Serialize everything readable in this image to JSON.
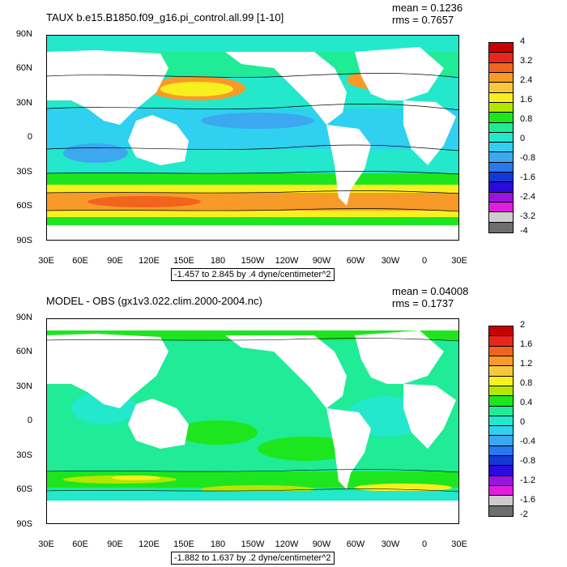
{
  "panels": [
    {
      "title": "TAUX b.e15.B1850.f09_g16.pi_control.all.99 [1-10]",
      "mean": "mean = 0.1236",
      "rms": "rms = 0.7657",
      "range_label": "-1.457 to 2.845 by .4 dyne/centimeter^2",
      "lat_labels": [
        "90N",
        "60N",
        "30N",
        "0",
        "30S",
        "60S",
        "90S"
      ],
      "lon_labels": [
        "30E",
        "60E",
        "90E",
        "120E",
        "150E",
        "180",
        "150W",
        "120W",
        "90W",
        "60W",
        "30W",
        "0",
        "30E"
      ],
      "colorbar": {
        "labels": [
          "4",
          "3.2",
          "2.4",
          "1.6",
          "0.8",
          "0",
          "-0.8",
          "-1.6",
          "-2.4",
          "-3.2",
          "-4"
        ],
        "colors": [
          "#c80000",
          "#e8261e",
          "#f0641e",
          "#f89a28",
          "#f8c83c",
          "#f8f01e",
          "#b4e600",
          "#1ee61e",
          "#20eb96",
          "#23e8cc",
          "#2fd0f0",
          "#3ca8f0",
          "#2878ee",
          "#1438d8",
          "#2a0ae0",
          "#9a14e0",
          "#e01ee0",
          "#cccccc",
          "#6e6e6e"
        ]
      }
    },
    {
      "title": "MODEL - OBS (gx1v3.022.clim.2000-2004.nc)",
      "mean": "mean = 0.04008",
      "rms": "rms = 0.1737",
      "range_label": "-1.882 to 1.637 by .2 dyne/centimeter^2",
      "lat_labels": [
        "90N",
        "60N",
        "30N",
        "0",
        "30S",
        "60S",
        "90S"
      ],
      "lon_labels": [
        "30E",
        "60E",
        "90E",
        "120E",
        "150E",
        "180",
        "150W",
        "120W",
        "90W",
        "60W",
        "30W",
        "0",
        "30E"
      ],
      "colorbar": {
        "labels": [
          "2",
          "1.6",
          "1.2",
          "0.8",
          "0.4",
          "0",
          "-0.4",
          "-0.8",
          "-1.2",
          "-1.6",
          "-2"
        ],
        "colors": [
          "#c80000",
          "#e8261e",
          "#f0641e",
          "#f89a28",
          "#f8c83c",
          "#f8f01e",
          "#b4e600",
          "#1ee61e",
          "#20eb96",
          "#23e8cc",
          "#2fd0f0",
          "#3ca8f0",
          "#2878ee",
          "#1438d8",
          "#2a0ae0",
          "#9a14e0",
          "#e01ee0",
          "#cccccc",
          "#6e6e6e"
        ]
      }
    }
  ]
}
